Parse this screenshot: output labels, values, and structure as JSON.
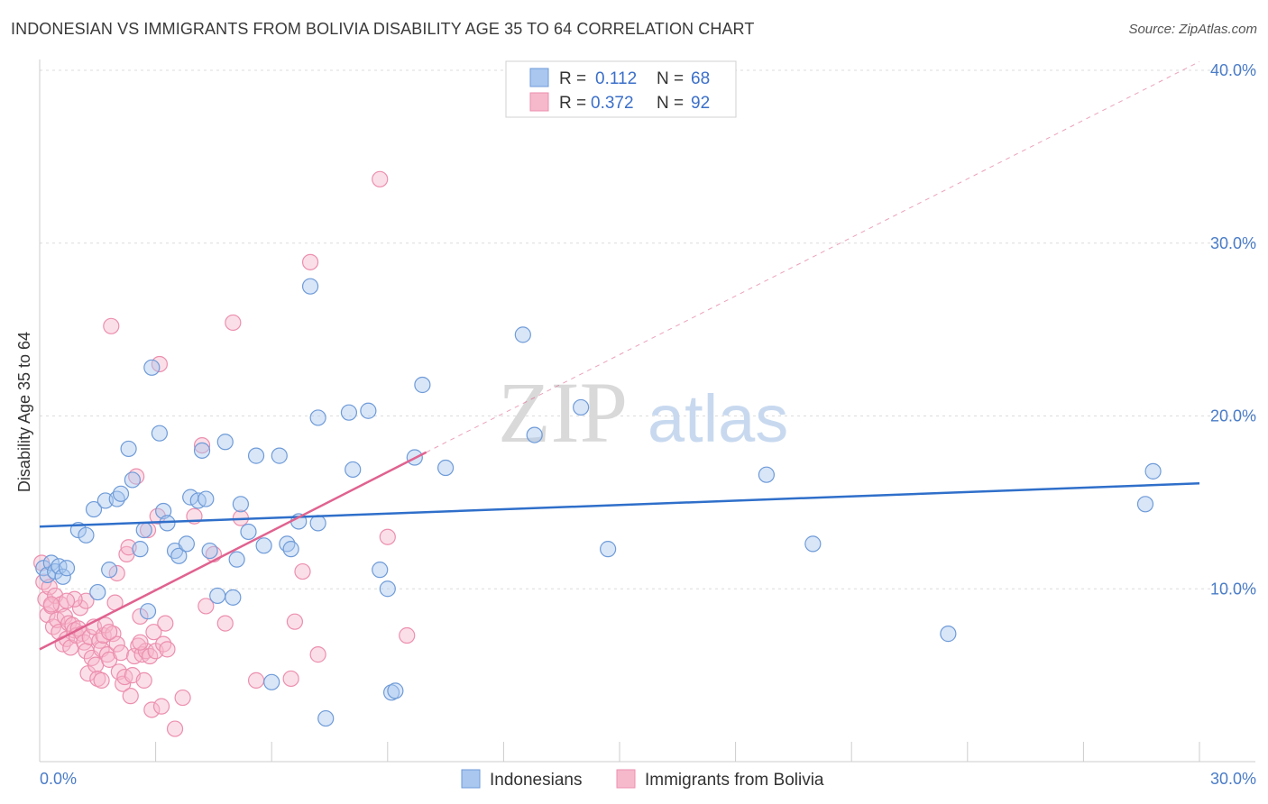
{
  "title": "INDONESIAN VS IMMIGRANTS FROM BOLIVIA DISABILITY AGE 35 TO 64 CORRELATION CHART",
  "source": "Source: ZipAtlas.com",
  "watermark": {
    "zip": "ZIP",
    "atlas": "atlas"
  },
  "colors": {
    "blue_fill": "#a9c7ef",
    "blue_stroke": "#6f9bd8",
    "blue_line": "#2f6fca",
    "pink_fill": "#f6b9cc",
    "pink_stroke": "#ec8fae",
    "pink_line": "#e0628f",
    "grid": "#dcdcdc",
    "tick_text": "#4a7cc7"
  },
  "legend": {
    "row1": {
      "r_label": "R =",
      "r_value": "0.112",
      "n_label": "N =",
      "n_value": "68"
    },
    "row2": {
      "r_label": "R =",
      "r_value": "0.372",
      "n_label": "N =",
      "n_value": "92"
    }
  },
  "chart_data": {
    "type": "scatter",
    "title": "INDONESIAN VS IMMIGRANTS FROM BOLIVIA DISABILITY AGE 35 TO 64 CORRELATION CHART",
    "xlabel": "",
    "ylabel": "Disability Age 35 to 64",
    "xlim": [
      0,
      30
    ],
    "ylim": [
      0,
      40
    ],
    "x_ticks": [
      {
        "v": 0,
        "label": "0.0%"
      },
      {
        "v": 30,
        "label": "30.0%"
      }
    ],
    "y_ticks": [
      {
        "v": 10,
        "label": "10.0%"
      },
      {
        "v": 20,
        "label": "20.0%"
      },
      {
        "v": 30,
        "label": "30.0%"
      },
      {
        "v": 40,
        "label": "40.0%"
      }
    ],
    "grid": true,
    "legend_position": "top-center",
    "series": [
      {
        "name": "Indonesians",
        "r": 0.112,
        "n": 68,
        "trend": {
          "x0": 0,
          "y0": 13.6,
          "x1": 30,
          "y1": 16.1
        },
        "points": [
          [
            0.1,
            11.2
          ],
          [
            0.2,
            10.8
          ],
          [
            0.3,
            11.5
          ],
          [
            0.4,
            11.0
          ],
          [
            0.5,
            11.3
          ],
          [
            0.6,
            10.7
          ],
          [
            0.7,
            11.2
          ],
          [
            1.0,
            13.4
          ],
          [
            1.2,
            13.1
          ],
          [
            1.4,
            14.6
          ],
          [
            1.5,
            9.8
          ],
          [
            1.7,
            15.1
          ],
          [
            1.8,
            11.1
          ],
          [
            2.0,
            15.2
          ],
          [
            2.1,
            15.5
          ],
          [
            2.3,
            18.1
          ],
          [
            2.4,
            16.3
          ],
          [
            2.6,
            12.3
          ],
          [
            2.7,
            13.4
          ],
          [
            2.8,
            8.7
          ],
          [
            2.9,
            22.8
          ],
          [
            3.1,
            19.0
          ],
          [
            3.2,
            14.5
          ],
          [
            3.3,
            13.8
          ],
          [
            3.5,
            12.2
          ],
          [
            3.6,
            11.9
          ],
          [
            3.8,
            12.6
          ],
          [
            3.9,
            15.3
          ],
          [
            4.1,
            15.1
          ],
          [
            4.2,
            18.0
          ],
          [
            4.3,
            15.2
          ],
          [
            4.4,
            12.2
          ],
          [
            4.6,
            9.6
          ],
          [
            4.8,
            18.5
          ],
          [
            5.0,
            9.5
          ],
          [
            5.1,
            11.7
          ],
          [
            5.2,
            14.9
          ],
          [
            5.4,
            13.3
          ],
          [
            5.6,
            17.7
          ],
          [
            5.8,
            12.5
          ],
          [
            6.0,
            4.6
          ],
          [
            6.2,
            17.7
          ],
          [
            6.4,
            12.6
          ],
          [
            6.5,
            12.3
          ],
          [
            6.7,
            13.9
          ],
          [
            7.0,
            27.5
          ],
          [
            7.2,
            13.8
          ],
          [
            7.4,
            2.5
          ],
          [
            7.2,
            19.9
          ],
          [
            8.0,
            20.2
          ],
          [
            8.1,
            16.9
          ],
          [
            8.5,
            20.3
          ],
          [
            8.8,
            11.1
          ],
          [
            9.0,
            10.0
          ],
          [
            9.1,
            4.0
          ],
          [
            9.2,
            4.1
          ],
          [
            9.7,
            17.6
          ],
          [
            9.9,
            21.8
          ],
          [
            10.5,
            17.0
          ],
          [
            12.5,
            24.7
          ],
          [
            12.8,
            18.9
          ],
          [
            14.0,
            20.5
          ],
          [
            14.7,
            12.3
          ],
          [
            18.8,
            16.6
          ],
          [
            20.0,
            12.6
          ],
          [
            23.5,
            7.4
          ],
          [
            28.6,
            14.9
          ],
          [
            28.8,
            16.8
          ]
        ]
      },
      {
        "name": "Immigrants from Bolivia",
        "r": 0.372,
        "n": 92,
        "trend": {
          "x0": 0,
          "y0": 6.5,
          "x1": 10,
          "y1": 17.9
        },
        "trend_dashed_to": {
          "x": 30,
          "y": 40.5
        },
        "points": [
          [
            0.05,
            11.5
          ],
          [
            0.1,
            10.4
          ],
          [
            0.15,
            9.4
          ],
          [
            0.2,
            8.5
          ],
          [
            0.25,
            10.1
          ],
          [
            0.3,
            9.0
          ],
          [
            0.35,
            7.8
          ],
          [
            0.4,
            9.6
          ],
          [
            0.45,
            8.2
          ],
          [
            0.5,
            7.5
          ],
          [
            0.55,
            9.1
          ],
          [
            0.6,
            6.8
          ],
          [
            0.65,
            8.4
          ],
          [
            0.7,
            7.1
          ],
          [
            0.75,
            8.0
          ],
          [
            0.8,
            6.6
          ],
          [
            0.85,
            7.9
          ],
          [
            0.9,
            7.6
          ],
          [
            0.95,
            7.3
          ],
          [
            1.0,
            7.7
          ],
          [
            1.05,
            8.9
          ],
          [
            1.1,
            7.4
          ],
          [
            1.15,
            6.9
          ],
          [
            1.2,
            6.4
          ],
          [
            1.25,
            5.1
          ],
          [
            1.3,
            7.2
          ],
          [
            1.35,
            6.0
          ],
          [
            1.4,
            7.8
          ],
          [
            1.45,
            5.6
          ],
          [
            1.5,
            4.8
          ],
          [
            1.55,
            7.0
          ],
          [
            1.6,
            6.5
          ],
          [
            1.65,
            7.3
          ],
          [
            1.7,
            7.9
          ],
          [
            1.75,
            6.2
          ],
          [
            1.8,
            5.9
          ],
          [
            1.85,
            25.2
          ],
          [
            1.9,
            7.4
          ],
          [
            1.95,
            9.2
          ],
          [
            2.0,
            6.8
          ],
          [
            2.05,
            5.2
          ],
          [
            2.1,
            6.3
          ],
          [
            2.15,
            4.5
          ],
          [
            2.2,
            4.9
          ],
          [
            2.25,
            12.0
          ],
          [
            2.3,
            12.4
          ],
          [
            2.35,
            3.8
          ],
          [
            2.4,
            5.0
          ],
          [
            2.45,
            6.1
          ],
          [
            2.5,
            16.5
          ],
          [
            2.55,
            6.7
          ],
          [
            2.6,
            8.4
          ],
          [
            2.65,
            6.2
          ],
          [
            2.7,
            4.7
          ],
          [
            2.75,
            6.4
          ],
          [
            2.8,
            13.4
          ],
          [
            2.85,
            6.1
          ],
          [
            2.9,
            3.0
          ],
          [
            2.95,
            7.5
          ],
          [
            3.0,
            6.4
          ],
          [
            3.05,
            14.2
          ],
          [
            3.1,
            23.0
          ],
          [
            3.15,
            3.2
          ],
          [
            3.2,
            6.8
          ],
          [
            3.25,
            8.0
          ],
          [
            3.3,
            6.5
          ],
          [
            3.5,
            1.9
          ],
          [
            3.7,
            3.7
          ],
          [
            4.0,
            14.2
          ],
          [
            4.2,
            18.3
          ],
          [
            4.3,
            9.0
          ],
          [
            4.5,
            12.0
          ],
          [
            4.8,
            8.0
          ],
          [
            5.0,
            25.4
          ],
          [
            5.2,
            14.1
          ],
          [
            5.6,
            4.7
          ],
          [
            6.5,
            4.8
          ],
          [
            6.6,
            8.1
          ],
          [
            6.8,
            11.0
          ],
          [
            7.0,
            28.9
          ],
          [
            7.2,
            6.2
          ],
          [
            8.8,
            33.7
          ],
          [
            9.0,
            13.0
          ],
          [
            9.5,
            7.3
          ],
          [
            1.2,
            9.3
          ],
          [
            0.9,
            9.4
          ],
          [
            2.0,
            10.9
          ],
          [
            1.6,
            4.7
          ],
          [
            0.3,
            9.1
          ],
          [
            0.7,
            9.3
          ],
          [
            1.8,
            7.5
          ],
          [
            2.6,
            6.9
          ]
        ]
      }
    ]
  },
  "bottom_legend": {
    "blue_label": "Indonesians",
    "pink_label": "Immigrants from Bolivia"
  }
}
